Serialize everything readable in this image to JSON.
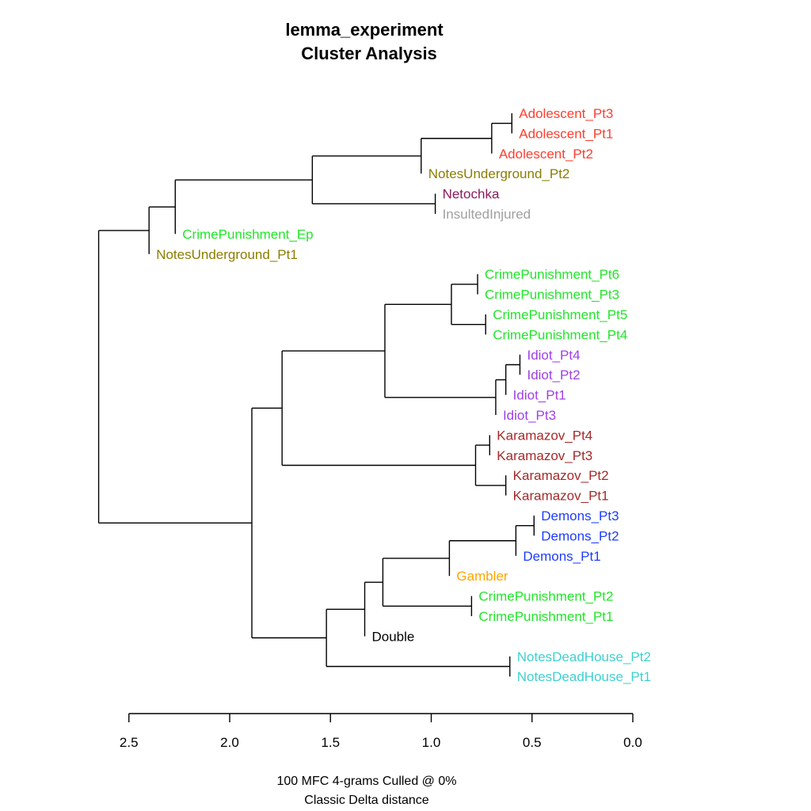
{
  "chart_data": {
    "type": "dendrogram",
    "title": [
      "lemma_experiment",
      "Cluster Analysis"
    ],
    "caption": [
      "100 MFC 4-grams Culled @ 0%",
      "Classic Delta distance"
    ],
    "x_axis": {
      "reversed": true,
      "range": [
        2.5,
        0.0
      ],
      "ticks": [
        2.5,
        2.0,
        1.5,
        1.0,
        0.5,
        0.0
      ],
      "tick_labels": [
        "2.5",
        "2.0",
        "1.5",
        "1.0",
        "0.5",
        "0.0"
      ]
    },
    "colors": {
      "Adolescent": "#ff3d2e",
      "NotesUnderground": "#8b7d00",
      "Netochka": "#8b1a5a",
      "InsultedInjured": "#a0a0a0",
      "CrimePunishment": "#22e62a",
      "Idiot": "#a040e6",
      "Karamazov": "#a52a2a",
      "Demons": "#1e3cff",
      "Gambler": "#ffa500",
      "Double": "#000000",
      "NotesDeadHouse": "#40d0d0"
    },
    "leaves": [
      {
        "label": "Adolescent_Pt3",
        "color": "#ff3d2e"
      },
      {
        "label": "Adolescent_Pt1",
        "color": "#ff3d2e"
      },
      {
        "label": "Adolescent_Pt2",
        "color": "#ff3d2e"
      },
      {
        "label": "NotesUnderground_Pt2",
        "color": "#8b7d00"
      },
      {
        "label": "Netochka",
        "color": "#8b1a5a"
      },
      {
        "label": "InsultedInjured",
        "color": "#a0a0a0"
      },
      {
        "label": "CrimePunishment_Ep",
        "color": "#22e62a"
      },
      {
        "label": "NotesUnderground_Pt1",
        "color": "#8b7d00"
      },
      {
        "label": "CrimePunishment_Pt6",
        "color": "#22e62a"
      },
      {
        "label": "CrimePunishment_Pt3",
        "color": "#22e62a"
      },
      {
        "label": "CrimePunishment_Pt5",
        "color": "#22e62a"
      },
      {
        "label": "CrimePunishment_Pt4",
        "color": "#22e62a"
      },
      {
        "label": "Idiot_Pt4",
        "color": "#a040e6"
      },
      {
        "label": "Idiot_Pt2",
        "color": "#a040e6"
      },
      {
        "label": "Idiot_Pt1",
        "color": "#a040e6"
      },
      {
        "label": "Idiot_Pt3",
        "color": "#a040e6"
      },
      {
        "label": "Karamazov_Pt4",
        "color": "#a52a2a"
      },
      {
        "label": "Karamazov_Pt3",
        "color": "#a52a2a"
      },
      {
        "label": "Karamazov_Pt2",
        "color": "#a52a2a"
      },
      {
        "label": "Karamazov_Pt1",
        "color": "#a52a2a"
      },
      {
        "label": "Demons_Pt3",
        "color": "#1e3cff"
      },
      {
        "label": "Demons_Pt2",
        "color": "#1e3cff"
      },
      {
        "label": "Demons_Pt1",
        "color": "#1e3cff"
      },
      {
        "label": "Gambler",
        "color": "#ffa500"
      },
      {
        "label": "CrimePunishment_Pt2",
        "color": "#22e62a"
      },
      {
        "label": "CrimePunishment_Pt1",
        "color": "#22e62a"
      },
      {
        "label": "Double",
        "color": "#000000"
      },
      {
        "label": "NotesDeadHouse_Pt2",
        "color": "#40d0d0"
      },
      {
        "label": "NotesDeadHouse_Pt1",
        "color": "#40d0d0"
      }
    ],
    "tree": {
      "h": 2.65,
      "c": [
        {
          "h": 2.4,
          "c": [
            {
              "h": 2.27,
              "c": [
                {
                  "h": 1.59,
                  "c": [
                    {
                      "h": 1.05,
                      "c": [
                        {
                          "h": 0.7,
                          "c": [
                            {
                              "h": 0.6,
                              "c": [
                                {
                                  "leaf": "Adolescent_Pt3"
                                },
                                {
                                  "leaf": "Adolescent_Pt1"
                                }
                              ]
                            },
                            {
                              "leaf": "Adolescent_Pt2"
                            }
                          ]
                        },
                        {
                          "leaf": "NotesUnderground_Pt2"
                        }
                      ]
                    },
                    {
                      "h": 0.98,
                      "c": [
                        {
                          "leaf": "Netochka"
                        },
                        {
                          "leaf": "InsultedInjured"
                        }
                      ]
                    }
                  ]
                },
                {
                  "leaf": "CrimePunishment_Ep"
                }
              ]
            },
            {
              "leaf": "NotesUnderground_Pt1"
            }
          ]
        },
        {
          "h": 1.89,
          "c": [
            {
              "h": 1.74,
              "c": [
                {
                  "h": 1.23,
                  "c": [
                    {
                      "h": 0.9,
                      "c": [
                        {
                          "h": 0.77,
                          "c": [
                            {
                              "leaf": "CrimePunishment_Pt6"
                            },
                            {
                              "leaf": "CrimePunishment_Pt3"
                            }
                          ]
                        },
                        {
                          "h": 0.73,
                          "c": [
                            {
                              "leaf": "CrimePunishment_Pt5"
                            },
                            {
                              "leaf": "CrimePunishment_Pt4"
                            }
                          ]
                        }
                      ]
                    },
                    {
                      "h": 0.68,
                      "c": [
                        {
                          "h": 0.63,
                          "c": [
                            {
                              "h": 0.56,
                              "c": [
                                {
                                  "leaf": "Idiot_Pt4"
                                },
                                {
                                  "leaf": "Idiot_Pt2"
                                }
                              ]
                            },
                            {
                              "leaf": "Idiot_Pt1"
                            }
                          ]
                        },
                        {
                          "leaf": "Idiot_Pt3"
                        }
                      ]
                    }
                  ]
                },
                {
                  "h": 0.78,
                  "c": [
                    {
                      "h": 0.71,
                      "c": [
                        {
                          "leaf": "Karamazov_Pt4"
                        },
                        {
                          "leaf": "Karamazov_Pt3"
                        }
                      ]
                    },
                    {
                      "h": 0.63,
                      "c": [
                        {
                          "leaf": "Karamazov_Pt2"
                        },
                        {
                          "leaf": "Karamazov_Pt1"
                        }
                      ]
                    }
                  ]
                }
              ]
            },
            {
              "h": 1.52,
              "c": [
                {
                  "h": 1.33,
                  "c": [
                    {
                      "h": 1.24,
                      "c": [
                        {
                          "h": 0.91,
                          "c": [
                            {
                              "h": 0.58,
                              "c": [
                                {
                                  "h": 0.49,
                                  "c": [
                                    {
                                      "leaf": "Demons_Pt3"
                                    },
                                    {
                                      "leaf": "Demons_Pt2"
                                    }
                                  ]
                                },
                                {
                                  "leaf": "Demons_Pt1"
                                }
                              ]
                            },
                            {
                              "leaf": "Gambler"
                            }
                          ]
                        },
                        {
                          "h": 0.8,
                          "c": [
                            {
                              "leaf": "CrimePunishment_Pt2"
                            },
                            {
                              "leaf": "CrimePunishment_Pt1"
                            }
                          ]
                        }
                      ]
                    },
                    {
                      "leaf": "Double"
                    }
                  ]
                },
                {
                  "h": 0.61,
                  "c": [
                    {
                      "leaf": "NotesDeadHouse_Pt2"
                    },
                    {
                      "leaf": "NotesDeadHouse_Pt1"
                    }
                  ]
                }
              ]
            }
          ]
        }
      ]
    }
  }
}
